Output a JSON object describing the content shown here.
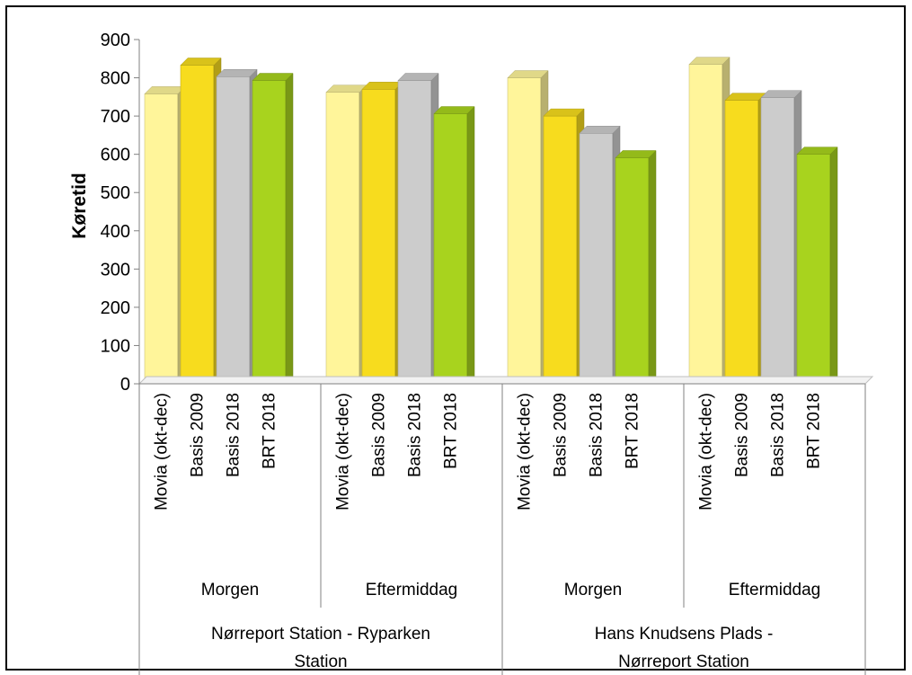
{
  "chart_data": {
    "type": "bar",
    "ylabel": "Køretid",
    "ylim": [
      0,
      900
    ],
    "yticks": [
      "0",
      "100",
      "200",
      "300",
      "400",
      "500",
      "600",
      "700",
      "800",
      "900"
    ],
    "series": [
      {
        "name": "Movia (okt-dec)",
        "color": "#FFF59A"
      },
      {
        "name": "Basis 2009",
        "color": "#F7DC1E"
      },
      {
        "name": "Basis 2018",
        "color": "#CCCCCC"
      },
      {
        "name": "BRT 2018",
        "color": "#A8D31E"
      }
    ],
    "groups": [
      {
        "route": "Nørreport Station - Ryparken Station",
        "route_lines": [
          "Nørreport Station - Ryparken",
          "Station"
        ],
        "period": "Morgen",
        "values": [
          758,
          833,
          803,
          793
        ]
      },
      {
        "route": "Nørreport Station - Ryparken Station",
        "route_lines": [
          "Nørreport Station - Ryparken",
          "Station"
        ],
        "period": "Eftermiddag",
        "values": [
          762,
          770,
          793,
          706
        ]
      },
      {
        "route": "Hans Knudsens Plads - Nørreport Station",
        "route_lines": [
          "Hans Knudsens Plads -",
          "Nørreport Station"
        ],
        "period": "Morgen",
        "values": [
          800,
          700,
          655,
          591
        ]
      },
      {
        "route": "Hans Knudsens Plads - Nørreport Station",
        "route_lines": [
          "Hans Knudsens Plads -",
          "Nørreport Station"
        ],
        "period": "Eftermiddag",
        "values": [
          835,
          741,
          748,
          600
        ]
      }
    ],
    "grid": false,
    "legend": "none",
    "style": "3d-column"
  }
}
